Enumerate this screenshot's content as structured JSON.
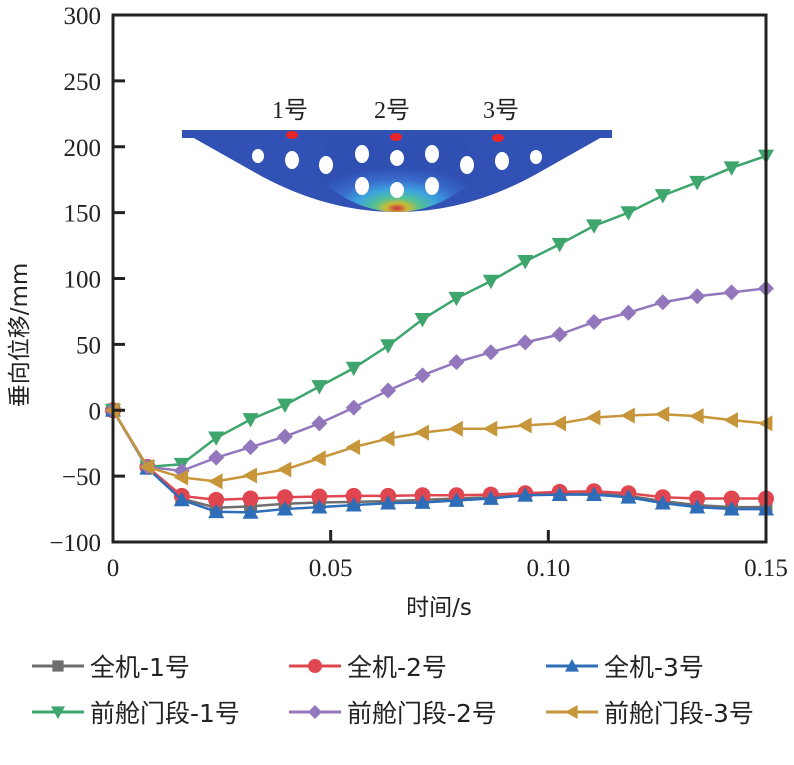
{
  "chart_data": {
    "type": "line",
    "title": "",
    "xlabel": "时间/s",
    "ylabel": "垂向位移/mm",
    "xlim": [
      0,
      0.15
    ],
    "ylim": [
      -100,
      300
    ],
    "xticks": [
      0,
      0.05,
      0.1,
      0.15
    ],
    "xtick_labels": [
      "0",
      "0.05",
      "0.10",
      "0.15"
    ],
    "yticks": [
      -100,
      -50,
      0,
      50,
      100,
      150,
      200,
      250,
      300
    ],
    "ytick_labels": [
      "−100",
      "−50",
      "0",
      "50",
      "100",
      "150",
      "200",
      "250",
      "300"
    ],
    "grid": false,
    "legend_position": "bottom",
    "x": [
      0,
      0.0079,
      0.0158,
      0.0237,
      0.0316,
      0.0395,
      0.0474,
      0.0553,
      0.0632,
      0.0711,
      0.0789,
      0.0868,
      0.0947,
      0.1026,
      0.1105,
      0.1184,
      0.1263,
      0.1342,
      0.1421,
      0.15
    ],
    "series": [
      {
        "name": "全机-1号",
        "color": "#6e6e6e",
        "marker": "square",
        "values": [
          0,
          -43,
          -67,
          -74,
          -73,
          -71,
          -70,
          -69.5,
          -69,
          -68,
          -67,
          -66,
          -64.5,
          -63,
          -63,
          -65,
          -69,
          -72,
          -73.5,
          -73.5
        ]
      },
      {
        "name": "全机-2号",
        "color": "#e0464f",
        "marker": "circle",
        "values": [
          0,
          -43,
          -65,
          -68,
          -67,
          -66,
          -65.5,
          -65,
          -65,
          -64.5,
          -64.5,
          -64,
          -63,
          -62,
          -61.5,
          -63,
          -66,
          -67,
          -67,
          -67
        ]
      },
      {
        "name": "全机-3号",
        "color": "#2e6db8",
        "marker": "triangle-up",
        "values": [
          0,
          -44,
          -68,
          -77,
          -77.5,
          -75,
          -73.5,
          -72,
          -70.5,
          -70,
          -68.5,
          -67,
          -64.5,
          -64,
          -64,
          -66,
          -70.5,
          -73.5,
          -75,
          -75
        ]
      },
      {
        "name": "前舱门段-1号",
        "color": "#3ea56d",
        "marker": "triangle-down",
        "values": [
          0,
          -43,
          -41,
          -21,
          -7,
          4,
          18,
          32,
          49,
          69,
          85,
          98,
          113,
          126,
          140,
          150,
          163,
          173,
          184,
          193
        ]
      },
      {
        "name": "前舱门段-2号",
        "color": "#9377bd",
        "marker": "diamond",
        "values": [
          0,
          -43,
          -46,
          -36,
          -28,
          -20,
          -10,
          2,
          15,
          26.5,
          36.5,
          44,
          51.5,
          57.5,
          67,
          74,
          82,
          86.5,
          89.5,
          92.5
        ]
      },
      {
        "name": "前舱门段-3号",
        "color": "#c8963a",
        "marker": "triangle-left",
        "values": [
          0,
          -43,
          -51,
          -54,
          -49.5,
          -45,
          -36.5,
          -28,
          -21.5,
          -17,
          -14,
          -14,
          -11.5,
          -10,
          -5.5,
          -4,
          -3,
          -4.5,
          -7.5,
          -10
        ]
      }
    ],
    "inset": {
      "description": "结构位移云图",
      "labels": [
        "1号",
        "2号",
        "3号"
      ]
    }
  }
}
